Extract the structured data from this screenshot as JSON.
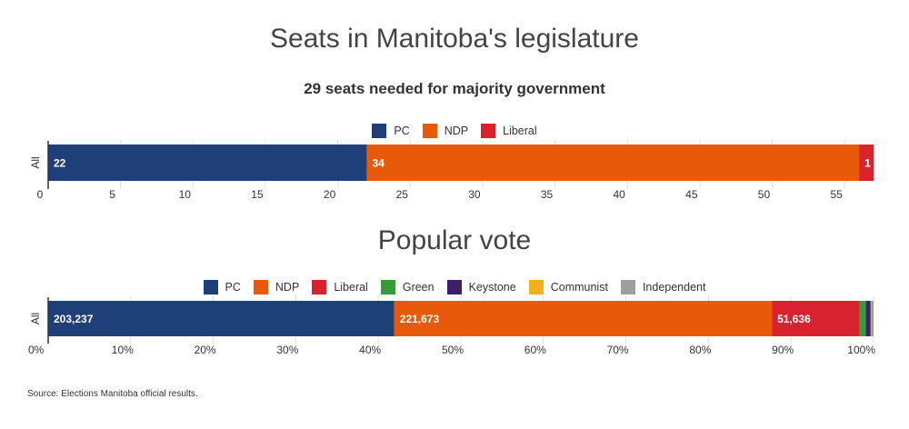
{
  "source": "Source: Elections Manitoba official results.",
  "chart_data": [
    {
      "type": "bar",
      "orientation": "horizontal",
      "stacked": true,
      "title": "Seats in Manitoba's legislature",
      "subtitle": "29 seats needed for majority government",
      "categories": [
        "All"
      ],
      "series": [
        {
          "name": "PC",
          "values": [
            22
          ],
          "color": "#1f3f78",
          "label": "22"
        },
        {
          "name": "NDP",
          "values": [
            34
          ],
          "color": "#e85a0a",
          "label": "34"
        },
        {
          "name": "Liberal",
          "values": [
            1
          ],
          "color": "#d8232f",
          "label": "1"
        }
      ],
      "xlim": [
        0,
        57
      ],
      "ticks": [
        "0",
        "5",
        "10",
        "15",
        "20",
        "25",
        "30",
        "35",
        "40",
        "45",
        "50",
        "55"
      ],
      "tick_values": [
        0,
        5,
        10,
        15,
        20,
        25,
        30,
        35,
        40,
        45,
        50,
        55
      ],
      "legend": "top-center",
      "grid": true
    },
    {
      "type": "bar",
      "orientation": "horizontal",
      "stacked": true,
      "title": "Popular vote",
      "categories": [
        "All"
      ],
      "series": [
        {
          "name": "PC",
          "values": [
            203237
          ],
          "color": "#1f3f78",
          "label": "203,237"
        },
        {
          "name": "NDP",
          "values": [
            221673
          ],
          "color": "#e85a0a",
          "label": "221,673"
        },
        {
          "name": "Liberal",
          "values": [
            51636
          ],
          "color": "#d8232f",
          "label": "51,636"
        },
        {
          "name": "Green",
          "values": [
            3600
          ],
          "color": "#3a9a3a",
          "label": ""
        },
        {
          "name": "Keystone",
          "values": [
            2800
          ],
          "color": "#3c1f6e",
          "label": ""
        },
        {
          "name": "Communist",
          "values": [
            300
          ],
          "color": "#f0b020",
          "label": ""
        },
        {
          "name": "Independent",
          "values": [
            1400
          ],
          "color": "#9e9e9e",
          "label": ""
        }
      ],
      "scale": "percent",
      "ticks": [
        "0%",
        "10%",
        "20%",
        "30%",
        "40%",
        "50%",
        "60%",
        "70%",
        "80%",
        "90%",
        "100%"
      ],
      "tick_values": [
        0,
        10,
        20,
        30,
        40,
        50,
        60,
        70,
        80,
        90,
        100
      ],
      "legend": "top-center",
      "grid": true
    }
  ]
}
